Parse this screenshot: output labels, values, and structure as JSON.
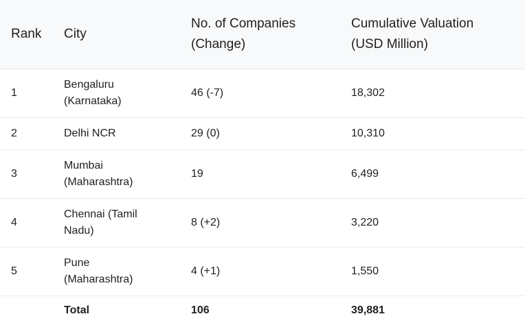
{
  "table": {
    "headers": {
      "rank": "Rank",
      "city": "City",
      "companies_line1": "No. of Companies",
      "companies_line2": "(Change)",
      "valuation_line1": "Cumulative Valuation",
      "valuation_line2": "(USD Million)"
    },
    "rows": [
      {
        "rank": "1",
        "city_line1": "Bengaluru",
        "city_line2": "(Karnataka)",
        "companies": "46 (-7)",
        "valuation": "18,302"
      },
      {
        "rank": "2",
        "city_line1": "Delhi NCR",
        "city_line2": "",
        "companies": "29 (0)",
        "valuation": "10,310"
      },
      {
        "rank": "3",
        "city_line1": "Mumbai",
        "city_line2": "(Maharashtra)",
        "companies": "19",
        "valuation": "6,499"
      },
      {
        "rank": "4",
        "city_line1": "Chennai (Tamil",
        "city_line2": "Nadu)",
        "companies": "8 (+2)",
        "valuation": "3,220"
      },
      {
        "rank": "5",
        "city_line1": "Pune",
        "city_line2": "(Maharashtra)",
        "companies": "4 (+1)",
        "valuation": "1,550"
      }
    ],
    "total": {
      "rank": "",
      "label": "Total",
      "companies": "106",
      "valuation": "39,881"
    }
  }
}
